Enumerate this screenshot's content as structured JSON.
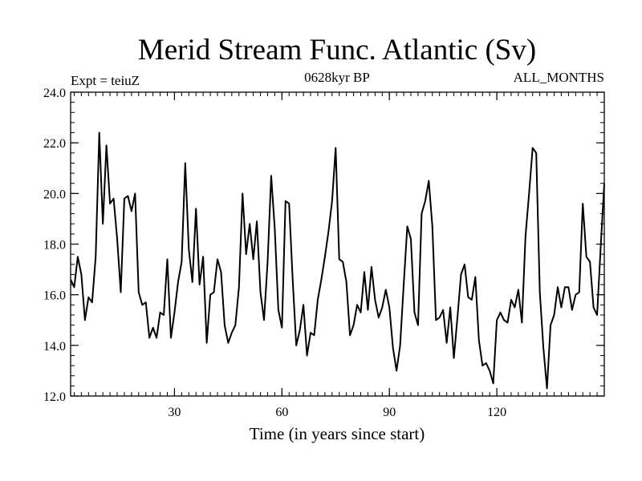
{
  "chart_data": {
    "type": "line",
    "title": "Merid Stream Func. Atlantic (Sv)",
    "subtitle_left": "Expt = teiuZ",
    "subtitle_center": "0628kyr BP",
    "subtitle_right": "ALL_MONTHS",
    "xlabel": "Time (in years since start)",
    "ylabel": "",
    "xlim": [
      1,
      150
    ],
    "ylim": [
      12,
      24
    ],
    "x_ticks": [
      30,
      60,
      90,
      120
    ],
    "x_minor_step": 2,
    "y_ticks": [
      12,
      14,
      16,
      18,
      20,
      22,
      24
    ],
    "y_tick_labels": [
      "12.0",
      "14.0",
      "16.0",
      "18.0",
      "20.0",
      "22.0",
      "24.0"
    ],
    "y_minor_step": 0.4,
    "grid": false,
    "line_color": "#000000",
    "series": [
      {
        "x_start": 1,
        "x_step": 1,
        "values": [
          16.6,
          16.3,
          17.5,
          16.8,
          15.0,
          15.9,
          15.7,
          17.5,
          22.4,
          18.8,
          21.9,
          19.6,
          19.8,
          18.2,
          16.1,
          19.8,
          19.9,
          19.3,
          20.0,
          16.1,
          15.6,
          15.7,
          14.3,
          14.7,
          14.3,
          15.3,
          15.2,
          17.4,
          14.3,
          15.3,
          16.5,
          17.3,
          21.2,
          17.8,
          16.5,
          19.4,
          16.4,
          17.5,
          14.1,
          16.0,
          16.1,
          17.4,
          16.9,
          14.8,
          14.1,
          14.5,
          14.8,
          16.3,
          20.0,
          17.6,
          18.8,
          17.4,
          18.9,
          16.1,
          15.0,
          17.3,
          20.7,
          18.6,
          15.4,
          14.7,
          19.7,
          19.6,
          16.6,
          14.0,
          14.6,
          15.6,
          13.6,
          14.5,
          14.4,
          15.8,
          16.6,
          17.5,
          18.5,
          19.7,
          21.8,
          17.4,
          17.3,
          16.5,
          14.4,
          14.8,
          15.6,
          15.3,
          16.9,
          15.4,
          17.1,
          15.8,
          15.1,
          15.5,
          16.2,
          15.5,
          13.9,
          13.0,
          14.0,
          16.4,
          18.7,
          18.2,
          15.3,
          14.8,
          19.2,
          19.7,
          20.5,
          18.7,
          15.0,
          15.1,
          15.4,
          14.1,
          15.5,
          13.5,
          15.1,
          16.8,
          17.2,
          15.9,
          15.8,
          16.7,
          14.2,
          13.2,
          13.3,
          13.0,
          12.5,
          15.0,
          15.3,
          15.0,
          14.9,
          15.8,
          15.5,
          16.2,
          14.9,
          18.3,
          20.0,
          21.8,
          21.6,
          16.1,
          13.9,
          12.3,
          14.8,
          15.2,
          16.3,
          15.5,
          16.3,
          16.3,
          15.4,
          16.0,
          16.1,
          19.6,
          17.5,
          17.3,
          15.5,
          15.2,
          17.9,
          20.4
        ]
      }
    ]
  }
}
